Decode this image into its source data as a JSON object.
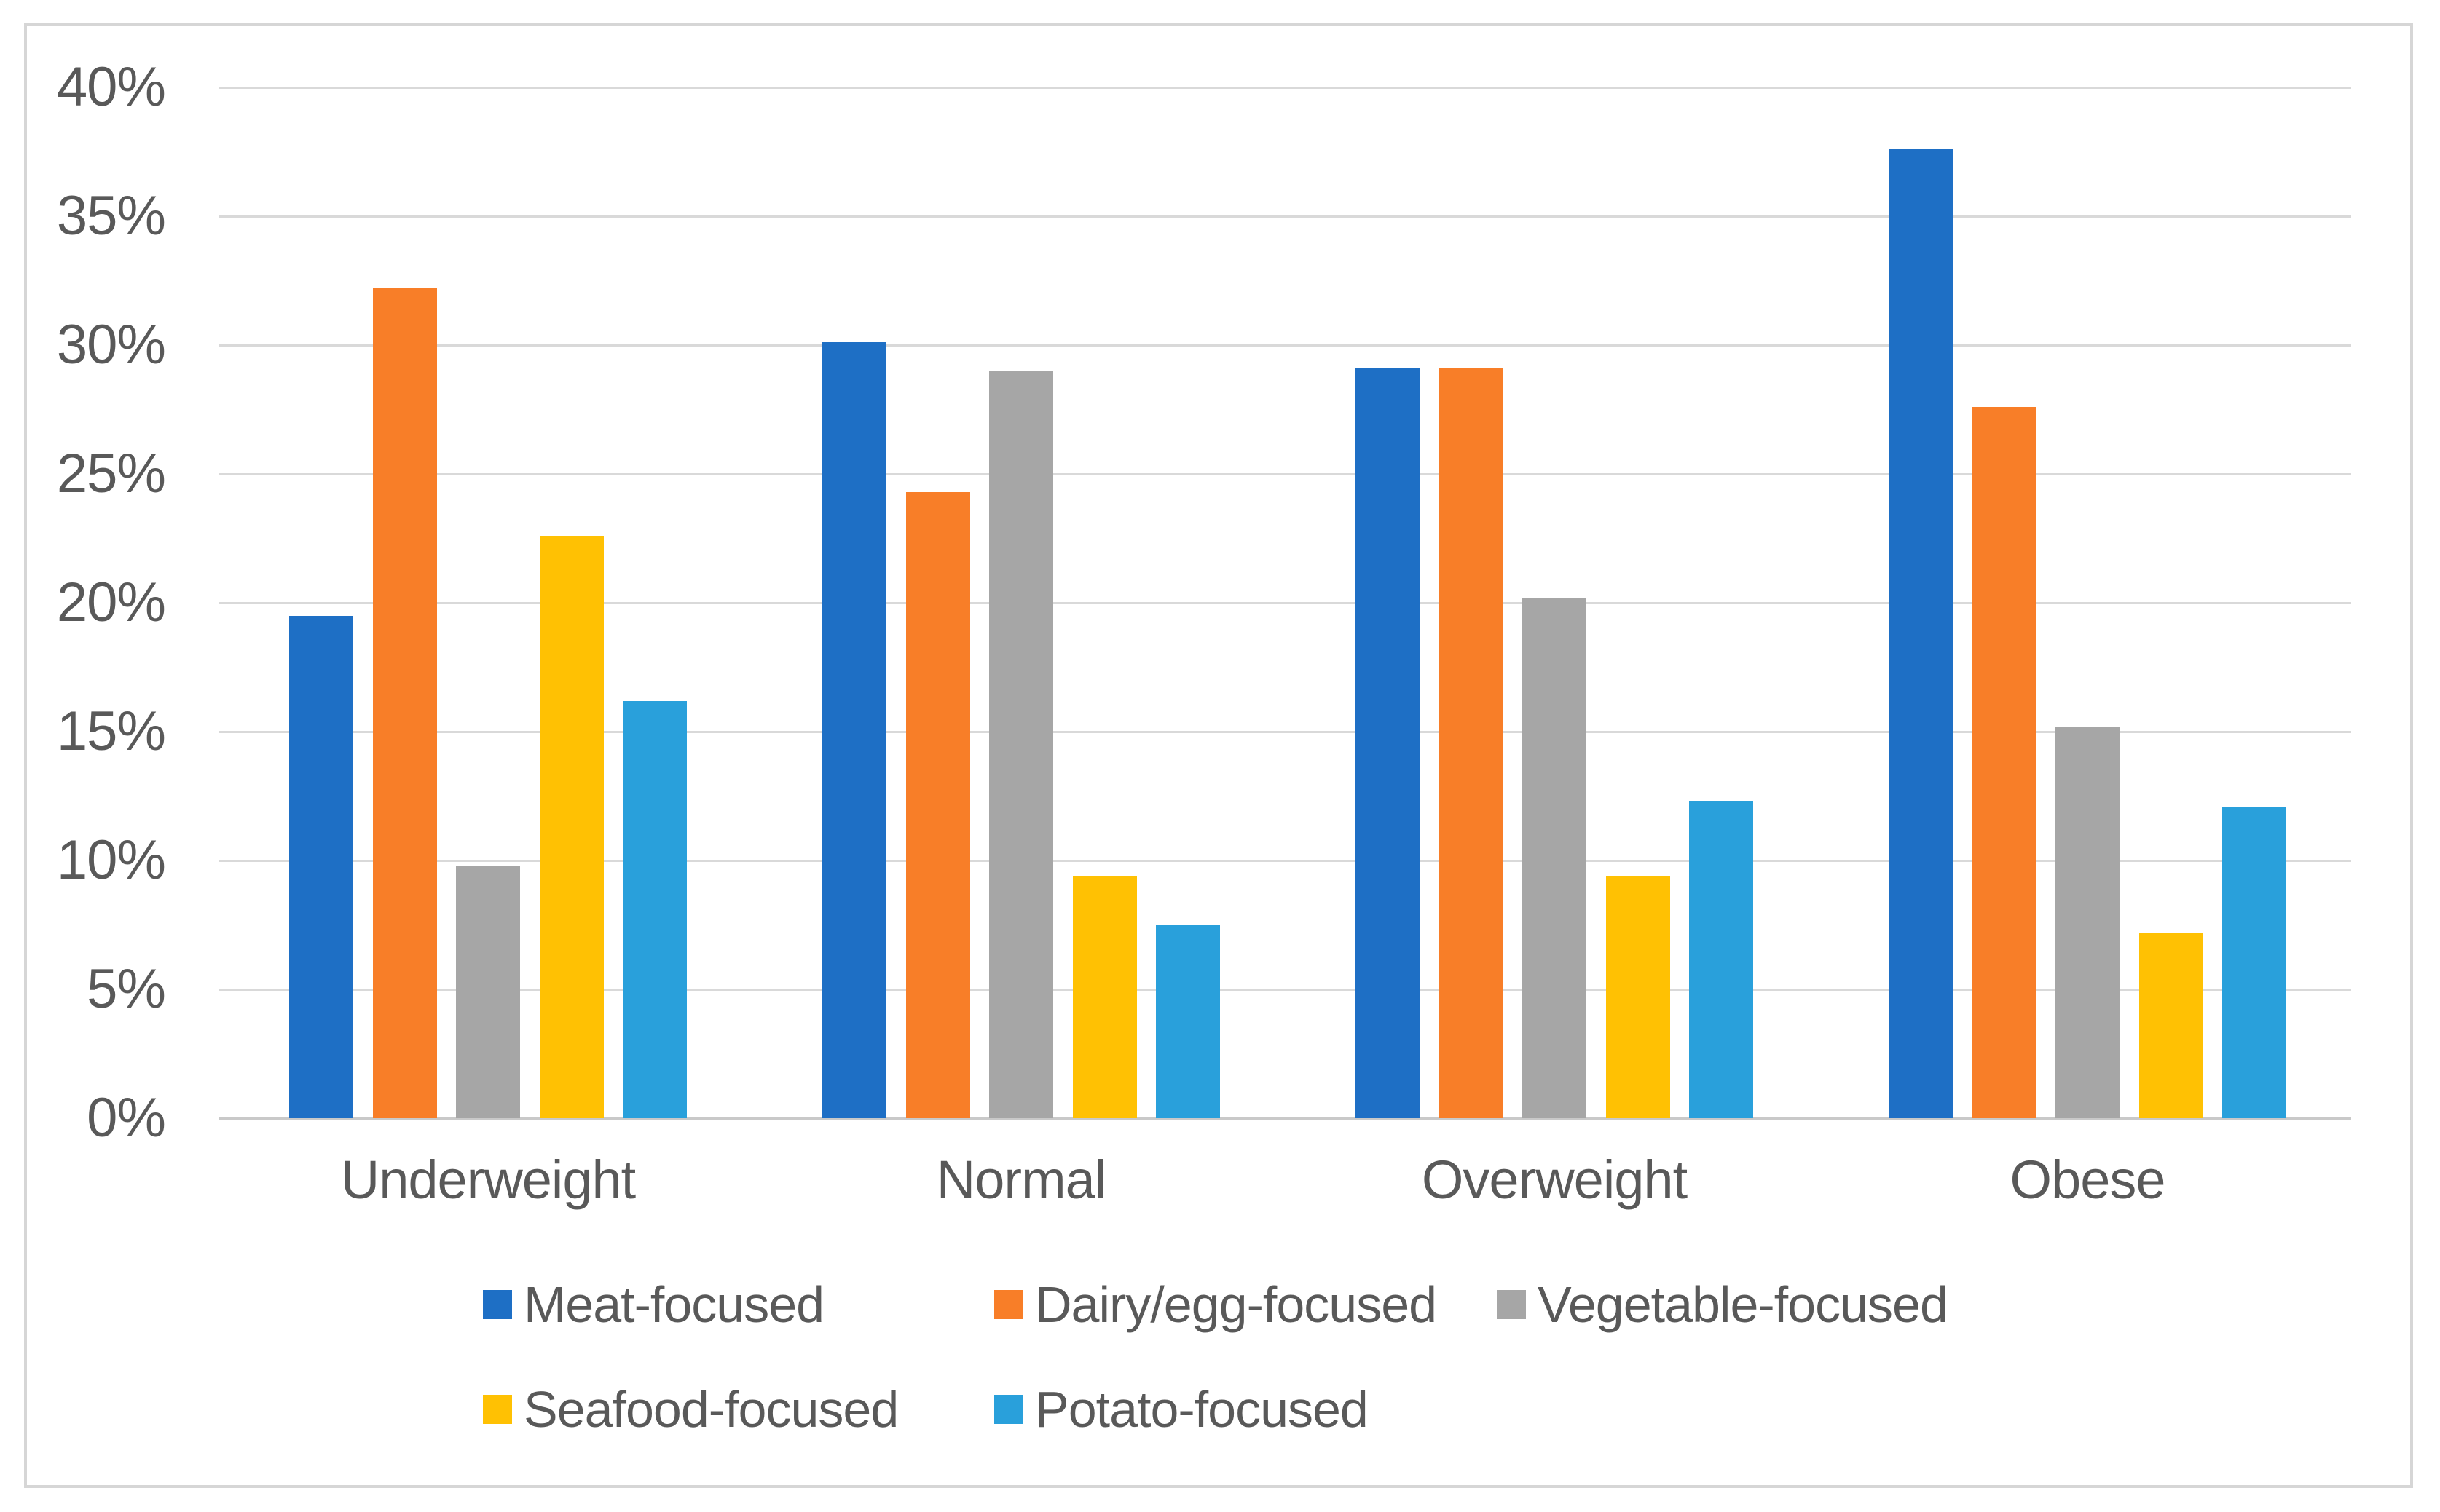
{
  "figure": {
    "background_color": "#FFFFFF",
    "border_color": "#D6D6D6"
  },
  "chart_data": {
    "type": "bar",
    "title": "",
    "xlabel": "",
    "ylabel": "",
    "units": "%",
    "categories": [
      "Underweight",
      "Normal",
      "Overweight",
      "Obese"
    ],
    "series": [
      {
        "name": "Meat-focused",
        "color": "#1E6FC5",
        "values": [
          19.5,
          30.1,
          29.1,
          37.6
        ]
      },
      {
        "name": "Dairy/egg-focused",
        "color": "#F87E28",
        "values": [
          32.2,
          24.3,
          29.1,
          27.6
        ]
      },
      {
        "name": "Vegetable-focused",
        "color": "#A6A6A6",
        "values": [
          9.8,
          29.0,
          20.2,
          15.2
        ]
      },
      {
        "name": "Seafood-focused",
        "color": "#FFC103",
        "values": [
          22.6,
          9.4,
          9.4,
          7.2
        ]
      },
      {
        "name": "Potato-focused",
        "color": "#29A0DB",
        "values": [
          16.2,
          7.5,
          12.3,
          12.1
        ]
      }
    ],
    "ylim": [
      0,
      40
    ],
    "y_tick_step": 5,
    "y_tick_labels": [
      "0%",
      "5%",
      "10%",
      "15%",
      "20%",
      "25%",
      "30%",
      "35%",
      "40%"
    ],
    "grid": "horizontal",
    "gridline_color": "#D9D9D9",
    "axis_line_color": "#C9C9C9",
    "axis_text_color": "#595959",
    "legend_position": "bottom",
    "legend_rows": [
      [
        "Meat-focused",
        "Dairy/egg-focused",
        "Vegetable-focused"
      ],
      [
        "Seafood-focused",
        "Potato-focused"
      ]
    ]
  }
}
